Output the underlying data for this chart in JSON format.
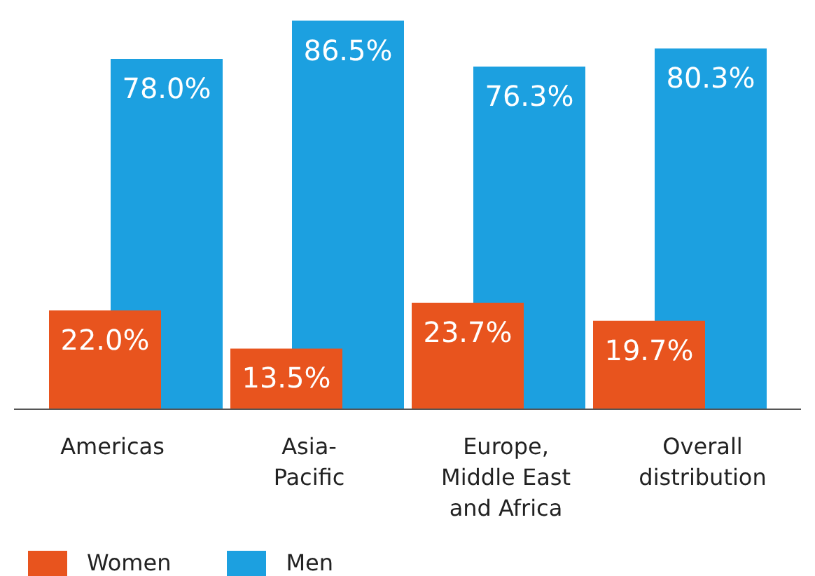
{
  "chart_data": {
    "type": "bar",
    "categories": [
      "Americas",
      "Asia-Pacific",
      "Europe, Middle East and Africa",
      "Overall distribution"
    ],
    "series": [
      {
        "name": "Women",
        "color": "#e8541e",
        "values": [
          22.0,
          13.5,
          23.7,
          19.7
        ],
        "value_labels": [
          "22.0%",
          "13.5%",
          "23.7%",
          "19.7%"
        ]
      },
      {
        "name": "Men",
        "color": "#1ca0e0",
        "values": [
          78.0,
          86.5,
          76.3,
          80.3
        ],
        "value_labels": [
          "78.0%",
          "86.5%",
          "76.3%",
          "80.3%"
        ]
      }
    ],
    "legend": "bottom left",
    "grid": false
  }
}
